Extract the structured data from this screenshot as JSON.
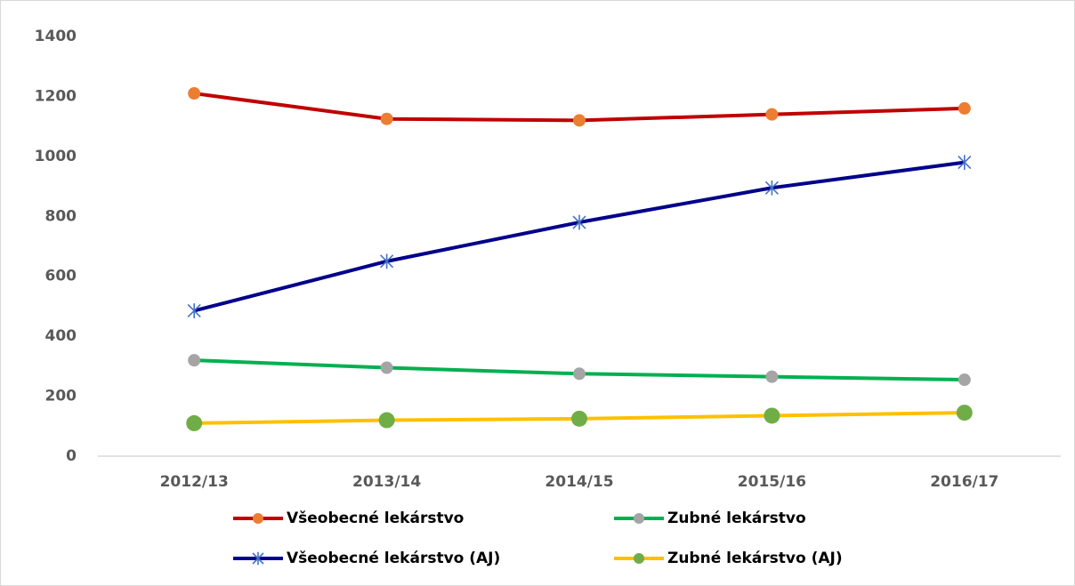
{
  "chart_data": {
    "type": "line",
    "categories": [
      "2012/13",
      "2013/14",
      "2014/15",
      "2015/16",
      "2016/17"
    ],
    "series": [
      {
        "name": "Všeobecné lekárstvo",
        "color": "#c00000",
        "marker": "circle",
        "marker_color": "#ed7d31",
        "values": [
          1210,
          1125,
          1120,
          1140,
          1160
        ]
      },
      {
        "name": "Zubné lekárstvo",
        "color": "#00b050",
        "marker": "circle",
        "marker_color": "#a5a5a5",
        "values": [
          320,
          295,
          275,
          265,
          255
        ]
      },
      {
        "name": "Všeobecné lekárstvo (AJ)",
        "color": "#00008b",
        "marker": "star",
        "marker_color": "#4472c4",
        "values": [
          485,
          650,
          780,
          895,
          980
        ]
      },
      {
        "name": "Zubné lekárstvo (AJ)",
        "color": "#ffc000",
        "marker": "circle",
        "marker_color": "#70ad47",
        "values": [
          110,
          120,
          125,
          135,
          145
        ]
      }
    ],
    "ylim": [
      0,
      1400
    ],
    "yticks": [
      0,
      200,
      400,
      600,
      800,
      1000,
      1200,
      1400
    ],
    "grid": false
  }
}
